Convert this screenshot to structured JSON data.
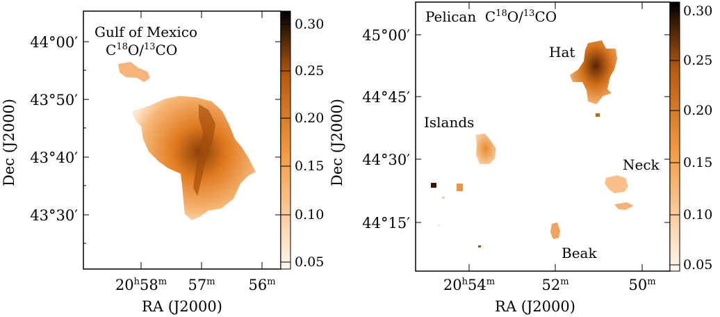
{
  "left_panel": {
    "title_line1": "Gulf of Mexico",
    "title_line2_parts": [
      "C",
      "18",
      "O/",
      "13",
      "CO"
    ],
    "xlabel": "RA (J2000)",
    "ylabel": "Dec (J2000)",
    "yticks": [
      "44°00′",
      "43°50′",
      "43°40′",
      "43°30′"
    ],
    "xticks": [
      {
        "main": "20",
        "sup1": "h",
        "mid": "58",
        "sup2": "m"
      },
      {
        "main": "57",
        "sup2": "m"
      },
      {
        "main": "56",
        "sup2": "m"
      }
    ],
    "colorbar_ticks": [
      "0.30",
      "0.25",
      "0.20",
      "0.15",
      "0.10",
      "0.05"
    ]
  },
  "right_panel": {
    "title_parts": [
      "Pelican  C",
      "18",
      "O/",
      "13",
      "CO"
    ],
    "xlabel": "RA (J2000)",
    "ylabel": "Dec (J2000)",
    "yticks": [
      "45°00′",
      "44°45′",
      "44°30′",
      "44°15′"
    ],
    "xticks": [
      {
        "main": "20",
        "sup1": "h",
        "mid": "54",
        "sup2": "m"
      },
      {
        "main": "52",
        "sup2": "m"
      },
      {
        "main": "50",
        "sup2": "m"
      }
    ],
    "labels": {
      "hat": "Hat",
      "islands": "Islands",
      "neck": "Neck",
      "beak": "Beak"
    },
    "colorbar_ticks": [
      "0.30",
      "0.25",
      "0.20",
      "0.15",
      "0.10",
      "0.05"
    ]
  },
  "colors": {
    "low": "#fff6ee",
    "mid": "#f08a28",
    "high": "#000000"
  }
}
